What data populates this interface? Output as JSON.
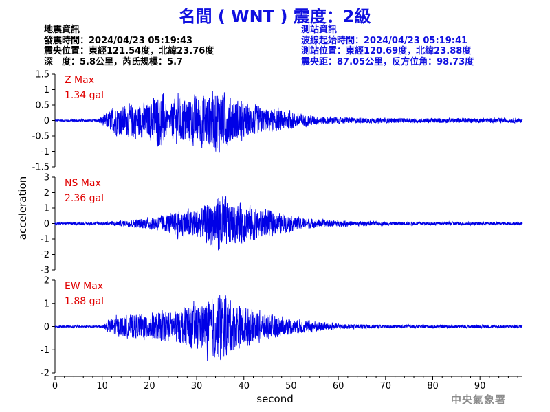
{
  "header": {
    "title": "名間 ( WNT ) 震度：2級"
  },
  "quake_info": {
    "heading": "地震資訊",
    "origin_time": "發震時間：2024/04/23 05:19:43",
    "epicenter": "震央位置：東經121.54度，北緯23.76度",
    "depth_magnitude": "深　度：5.8公里，芮氏規模：5.7"
  },
  "station_info": {
    "heading": "測站資訊",
    "wave_start": "波線起始時間：2024/04/23 05:19:41",
    "location": "測站位置：東經120.69度，北緯23.88度",
    "distance_azimuth": "震央距：87.05公里，反方位角：98.73度"
  },
  "credit": "中央氣象署",
  "colors": {
    "title": "#1010e0",
    "trace": "#0000e6",
    "max_label": "#e00000",
    "station_text": "#1010e0"
  },
  "chart_data": [
    {
      "type": "line",
      "component": "Z",
      "max_label": "Z Max",
      "max_value": "1.34 gal",
      "ylim": [
        -1.5,
        1.5
      ],
      "yticks": [
        "1.5",
        "1",
        "0.5",
        "0",
        "-0.5",
        "-1",
        "-1.5"
      ],
      "envelope": [
        [
          0,
          0.04
        ],
        [
          9,
          0.04
        ],
        [
          13,
          0.5
        ],
        [
          17,
          0.6
        ],
        [
          20,
          0.6
        ],
        [
          21,
          0.85
        ],
        [
          23,
          0.9
        ],
        [
          24,
          0.25
        ],
        [
          25,
          0.7
        ],
        [
          27,
          0.8
        ],
        [
          30,
          0.85
        ],
        [
          33,
          0.95
        ],
        [
          34.5,
          1.1
        ],
        [
          37,
          0.8
        ],
        [
          40,
          0.6
        ],
        [
          45,
          0.4
        ],
        [
          50,
          0.3
        ],
        [
          55,
          0.15
        ],
        [
          62,
          0.1
        ],
        [
          70,
          0.08
        ],
        [
          99,
          0.08
        ]
      ]
    },
    {
      "type": "line",
      "component": "NS",
      "max_label": "NS Max",
      "max_value": "2.36 gal",
      "ylim": [
        -3,
        3
      ],
      "yticks": [
        "3",
        "2",
        "1",
        "0",
        "-1",
        "-2",
        "-3"
      ],
      "envelope": [
        [
          0,
          0.08
        ],
        [
          10,
          0.1
        ],
        [
          15,
          0.2
        ],
        [
          20,
          0.4
        ],
        [
          25,
          0.7
        ],
        [
          28,
          1.0
        ],
        [
          31,
          1.0
        ],
        [
          34,
          1.8
        ],
        [
          35,
          2.2
        ],
        [
          37,
          1.4
        ],
        [
          40,
          1.3
        ],
        [
          45,
          0.9
        ],
        [
          50,
          0.5
        ],
        [
          55,
          0.3
        ],
        [
          60,
          0.2
        ],
        [
          70,
          0.12
        ],
        [
          99,
          0.1
        ]
      ]
    },
    {
      "type": "line",
      "component": "EW",
      "max_label": "EW Max",
      "max_value": "1.88 gal",
      "ylim": [
        -2,
        2
      ],
      "yticks": [
        "2",
        "1",
        "0",
        "-1",
        "-2"
      ],
      "envelope": [
        [
          0,
          0.05
        ],
        [
          10,
          0.06
        ],
        [
          12,
          0.4
        ],
        [
          15,
          0.5
        ],
        [
          20,
          0.6
        ],
        [
          25,
          0.7
        ],
        [
          28,
          0.9
        ],
        [
          30,
          0.95
        ],
        [
          33,
          1.2
        ],
        [
          35,
          1.6
        ],
        [
          37,
          1.2
        ],
        [
          40,
          0.9
        ],
        [
          45,
          0.6
        ],
        [
          50,
          0.35
        ],
        [
          55,
          0.25
        ],
        [
          60,
          0.12
        ],
        [
          70,
          0.08
        ],
        [
          99,
          0.07
        ]
      ]
    }
  ],
  "axes": {
    "xlabel": "second",
    "ylabel": "acceleration",
    "xlim": [
      0,
      99
    ],
    "xticks": [
      "0",
      "10",
      "20",
      "30",
      "40",
      "50",
      "60",
      "70",
      "80",
      "90"
    ]
  }
}
